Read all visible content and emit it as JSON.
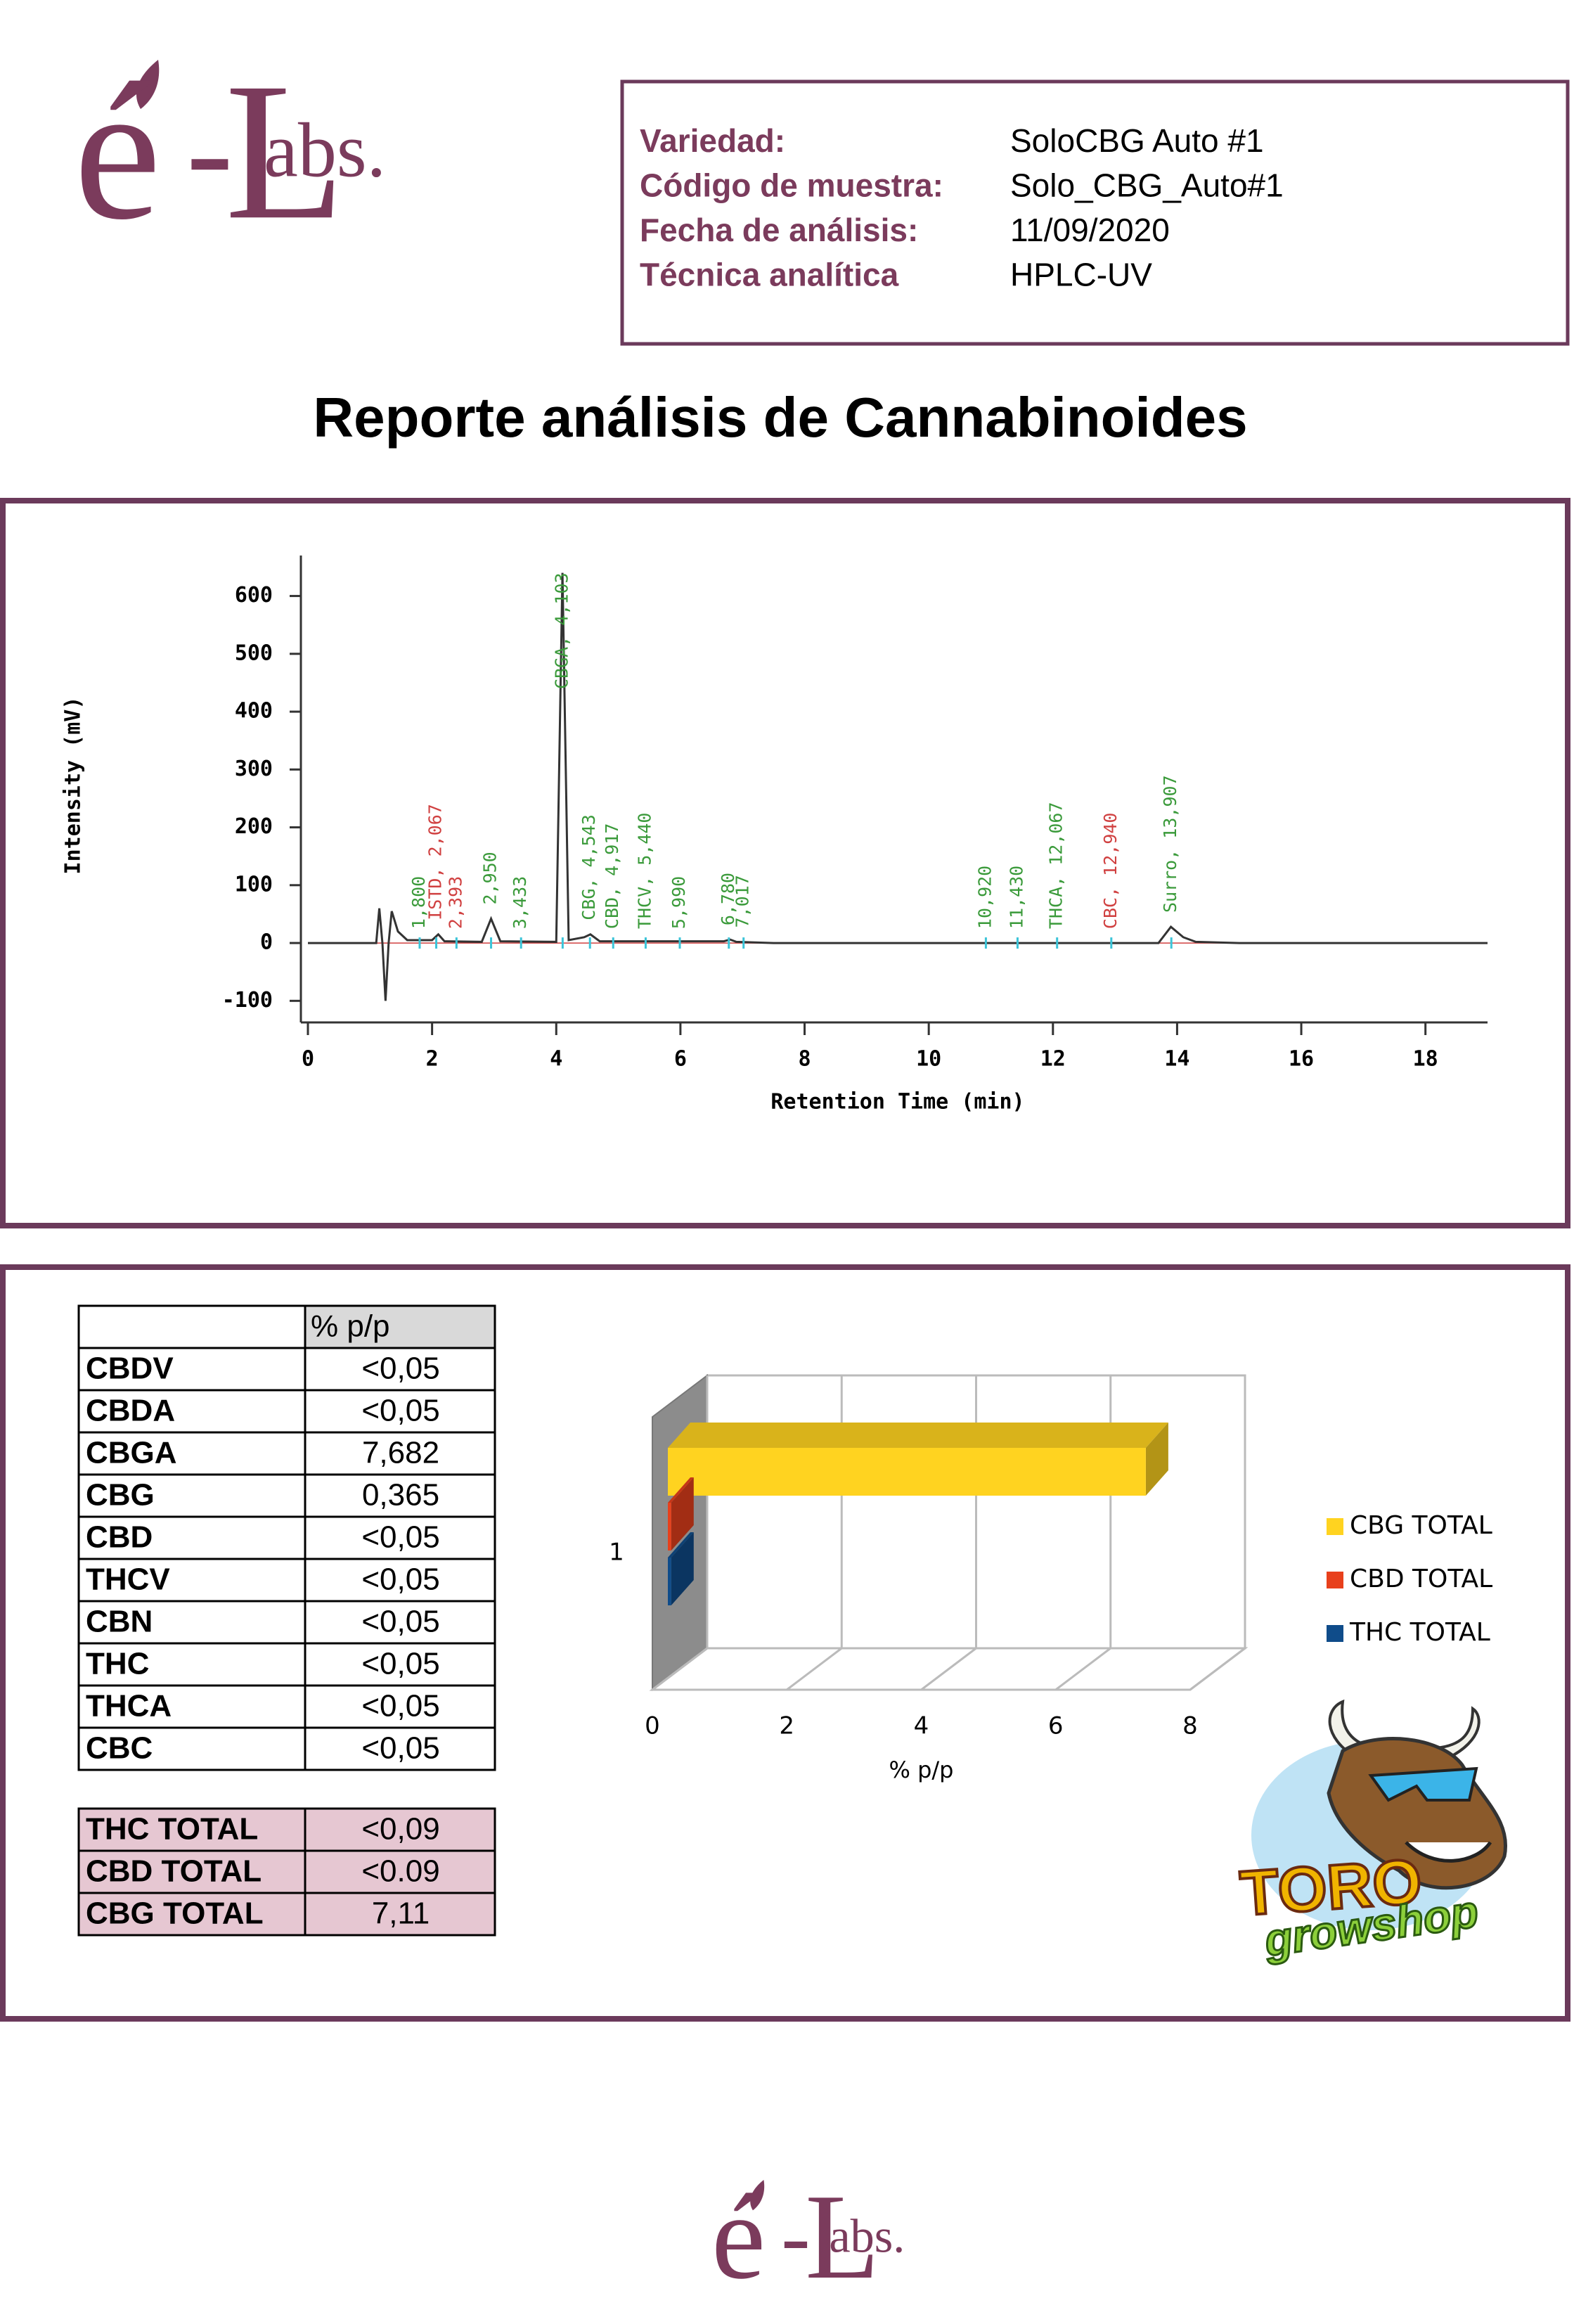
{
  "logo": {
    "e": "é",
    "dash": "-",
    "L": "L",
    "abs": "abs."
  },
  "header": {
    "fields": [
      {
        "label": "Variedad:",
        "value": "SoloCBG Auto #1"
      },
      {
        "label": "Código de muestra:",
        "value": "Solo_CBG_Auto#1"
      },
      {
        "label": "Fecha de análisis:",
        "value": "11/09/2020"
      },
      {
        "label": "Técnica analítica",
        "value": "HPLC-UV"
      }
    ]
  },
  "title": "Reporte análisis de Cannabinoides",
  "chart_data": [
    {
      "type": "line",
      "xlabel": "Retention Time (min)",
      "ylabel": "Intensity (mV)",
      "xlim": [
        0,
        19
      ],
      "ylim": [
        -130,
        670
      ],
      "xticks": [
        0,
        2,
        4,
        6,
        8,
        10,
        12,
        14,
        16,
        18
      ],
      "yticks": [
        -100,
        0,
        100,
        200,
        300,
        400,
        500,
        600
      ],
      "x": [
        0,
        1.0,
        1.1,
        1.15,
        1.2,
        1.25,
        1.3,
        1.35,
        1.45,
        1.6,
        2.0,
        2.1,
        2.2,
        2.8,
        2.95,
        3.1,
        4.0,
        4.1,
        4.2,
        4.45,
        4.55,
        4.7,
        6.7,
        6.8,
        6.9,
        7.5,
        13.7,
        13.9,
        14.1,
        14.3,
        15,
        19
      ],
      "series": [
        {
          "color": "#333333",
          "values": [
            0,
            0,
            0,
            60,
            0,
            -100,
            0,
            55,
            20,
            5,
            5,
            15,
            3,
            2,
            42,
            3,
            2,
            640,
            5,
            10,
            15,
            3,
            3,
            6,
            2,
            0,
            0,
            28,
            10,
            2,
            0,
            0
          ]
        }
      ],
      "peaks": [
        {
          "label": "1,800",
          "x": 1.8,
          "color": "#3a9a3a"
        },
        {
          "label": "ISTD, 2,067",
          "x": 2.067,
          "color": "#d04040"
        },
        {
          "label": "2,393",
          "x": 2.393,
          "color": "#d04040"
        },
        {
          "label": "2,950",
          "x": 2.95,
          "color": "#3a9a3a"
        },
        {
          "label": "3,433",
          "x": 3.433,
          "color": "#3a9a3a"
        },
        {
          "label": "CBGA, 4,103",
          "x": 4.103,
          "color": "#3a9a3a"
        },
        {
          "label": "CBG, 4,543",
          "x": 4.543,
          "color": "#3a9a3a"
        },
        {
          "label": "CBD, 4,917",
          "x": 4.917,
          "color": "#3a9a3a"
        },
        {
          "label": "THCV, 5,440",
          "x": 5.44,
          "color": "#3a9a3a"
        },
        {
          "label": "5,990",
          "x": 5.99,
          "color": "#3a9a3a"
        },
        {
          "label": "6,780",
          "x": 6.78,
          "color": "#3a9a3a"
        },
        {
          "label": "7,017",
          "x": 7.017,
          "color": "#3a9a3a"
        },
        {
          "label": "10,920",
          "x": 10.92,
          "color": "#3a9a3a"
        },
        {
          "label": "11,430",
          "x": 11.43,
          "color": "#3a9a3a"
        },
        {
          "label": "THCA, 12,067",
          "x": 12.067,
          "color": "#3a9a3a"
        },
        {
          "label": "CBC, 12,940",
          "x": 12.94,
          "color": "#d04040"
        },
        {
          "label": "Surro, 13,907",
          "x": 13.907,
          "color": "#3a9a3a"
        }
      ]
    },
    {
      "type": "bar",
      "orientation": "horizontal",
      "xlabel": "% p/p",
      "categories": [
        "1"
      ],
      "xlim": [
        0,
        8
      ],
      "xticks": [
        0,
        2,
        4,
        6,
        8
      ],
      "series": [
        {
          "name": "CBG TOTAL",
          "color": "#FFD320",
          "values": [
            7.11
          ]
        },
        {
          "name": "CBD TOTAL",
          "color": "#E8401C",
          "values": [
            0.05
          ]
        },
        {
          "name": "THC TOTAL",
          "color": "#0F4C8A",
          "values": [
            0.05
          ]
        }
      ]
    }
  ],
  "table": {
    "column": "% p/p",
    "rows": [
      [
        "CBDV",
        "<0,05"
      ],
      [
        "CBDA",
        "<0,05"
      ],
      [
        "CBGA",
        "7,682"
      ],
      [
        "CBG",
        "0,365"
      ],
      [
        "CBD",
        "<0,05"
      ],
      [
        "THCV",
        "<0,05"
      ],
      [
        "CBN",
        "<0,05"
      ],
      [
        "THC",
        "<0,05"
      ],
      [
        "THCA",
        "<0,05"
      ],
      [
        "CBC",
        "<0,05"
      ]
    ],
    "totals": [
      [
        "THC TOTAL",
        "<0,09"
      ],
      [
        "CBD TOTAL",
        "<0.09"
      ],
      [
        "CBG TOTAL",
        "7,11"
      ]
    ]
  },
  "sponsor": {
    "name": "TORO",
    "sub": "growshop"
  }
}
